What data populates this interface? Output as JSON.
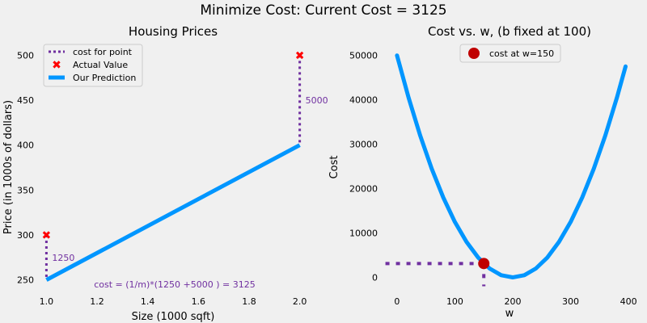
{
  "figure": {
    "suptitle": "Minimize Cost: Current Cost = 3125",
    "background": "#f0f0f0"
  },
  "chart_data": [
    {
      "type": "scatter",
      "title": "Housing Prices",
      "xlabel": "Size (1000 sqft)",
      "ylabel": "Price (in 1000s of dollars)",
      "xlim": [
        0.97,
        2.03
      ],
      "ylim": [
        238,
        512
      ],
      "xticks": [
        1.0,
        1.2,
        1.4,
        1.6,
        1.8,
        2.0
      ],
      "xtick_labels": [
        "1.0",
        "1.2",
        "1.4",
        "1.6",
        "1.8",
        "2.0"
      ],
      "yticks": [
        250,
        300,
        350,
        400,
        450,
        500
      ],
      "ytick_labels": [
        "250",
        "300",
        "350",
        "400",
        "450",
        "500"
      ],
      "grid": false,
      "legend_position": "top-left",
      "legend": [
        {
          "label": "cost for point",
          "style": "dotted-line",
          "color": "#7030a0"
        },
        {
          "label": "Actual Value",
          "style": "x-marker",
          "color": "#ff0000"
        },
        {
          "label": "Our Prediction",
          "style": "line",
          "color": "#0096ff"
        }
      ],
      "actual_points": [
        {
          "x": 1.0,
          "y": 300
        },
        {
          "x": 2.0,
          "y": 500
        }
      ],
      "prediction_line": [
        {
          "x": 1.0,
          "y": 250
        },
        {
          "x": 2.0,
          "y": 400
        }
      ],
      "cost_segments": [
        {
          "x": 1.0,
          "y_from": 300,
          "y_to": 250,
          "label": "1250"
        },
        {
          "x": 2.0,
          "y_from": 500,
          "y_to": 400,
          "label": "5000"
        }
      ],
      "annotation": "cost = (1/m)*(1250 +5000 ) = 3125",
      "colors": {
        "prediction": "#0096ff",
        "actual": "#ff0000",
        "cost": "#7030a0"
      }
    },
    {
      "type": "line",
      "title": "Cost vs. w, (b fixed at 100)",
      "xlabel": "w",
      "ylabel": "Cost",
      "xlim": [
        -25,
        425
      ],
      "ylim": [
        -3000,
        52500
      ],
      "xticks": [
        0,
        100,
        200,
        300,
        400
      ],
      "xtick_labels": [
        "0",
        "100",
        "200",
        "300",
        "400"
      ],
      "yticks": [
        0,
        10000,
        20000,
        30000,
        40000,
        50000
      ],
      "ytick_labels": [
        "0",
        "10000",
        "20000",
        "30000",
        "40000",
        "50000"
      ],
      "grid": false,
      "legend_position": "top-center",
      "legend": [
        {
          "label": "cost at w=150",
          "style": "circle-marker",
          "color": "#c00000"
        }
      ],
      "series": [
        {
          "x": [
            0,
            20,
            40,
            60,
            80,
            100,
            120,
            140,
            160,
            180,
            200,
            220,
            240,
            260,
            280,
            300,
            320,
            340,
            360,
            380,
            395
          ],
          "values": [
            50000,
            40500,
            32000,
            24500,
            18000,
            12500,
            8000,
            4500,
            2000,
            500,
            0,
            500,
            2000,
            4500,
            8000,
            12500,
            18000,
            24500,
            32000,
            40500,
            47531
          ]
        }
      ],
      "current_point": {
        "x": 150,
        "y": 3125
      },
      "guide_lines": {
        "horizontal": {
          "x_from": -20,
          "x_to": 150,
          "y": 3125
        },
        "vertical": {
          "x": 150,
          "y_from": 3125,
          "y_to": -2000
        }
      },
      "colors": {
        "curve": "#0096ff",
        "point": "#c00000",
        "guide": "#7030a0"
      }
    }
  ]
}
